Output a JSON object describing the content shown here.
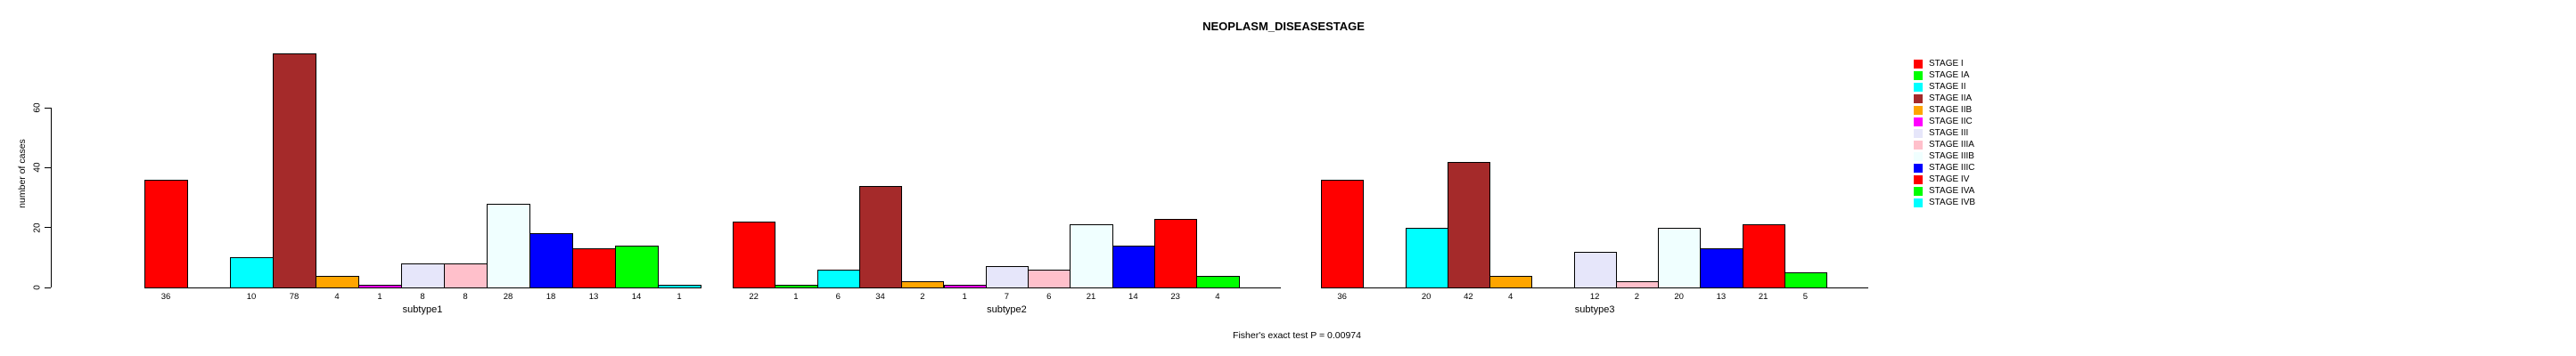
{
  "header": {
    "title": "NEOPLASM_DISEASESTAGE"
  },
  "chart_data": {
    "type": "bar",
    "title": "NEOPLASM_DISEASESTAGE",
    "xlabel": "",
    "ylabel": "number of cases",
    "ylim": [
      0,
      78
    ],
    "yticks": [
      0,
      20,
      40,
      60
    ],
    "grid": false,
    "legend_position": "right",
    "categories": [
      "STAGE I",
      "STAGE IA",
      "STAGE II",
      "STAGE IIA",
      "STAGE IIB",
      "STAGE IIC",
      "STAGE III",
      "STAGE IIIA",
      "STAGE IIIB",
      "STAGE IIIC",
      "STAGE IV",
      "STAGE IVA",
      "STAGE IVB"
    ],
    "palette": [
      "#FF0000",
      "#00FF00",
      "#00FFFF",
      "#A52A2A",
      "#FFA500",
      "#FF00FF",
      "#E6E6FA",
      "#FFC0CB",
      "#F0FFFF",
      "#0000FF",
      "#FF0000",
      "#00FF00",
      "#00FFFF"
    ],
    "series": [
      {
        "name": "subtype1",
        "values": [
          36,
          0,
          10,
          78,
          4,
          1,
          8,
          8,
          28,
          18,
          13,
          14,
          1
        ]
      },
      {
        "name": "subtype2",
        "values": [
          22,
          1,
          6,
          34,
          2,
          1,
          7,
          6,
          21,
          14,
          23,
          4,
          0
        ]
      },
      {
        "name": "subtype3",
        "values": [
          36,
          0,
          20,
          42,
          4,
          0,
          12,
          2,
          20,
          13,
          21,
          5,
          0
        ]
      }
    ],
    "bar_value_labels_shown": true,
    "zero_value_bars_hidden": true,
    "annotation": "Fisher's exact test P = 0.00974"
  },
  "colors": {
    "background": "#FFFFFF",
    "axis": "#000000",
    "text": "#000000"
  }
}
